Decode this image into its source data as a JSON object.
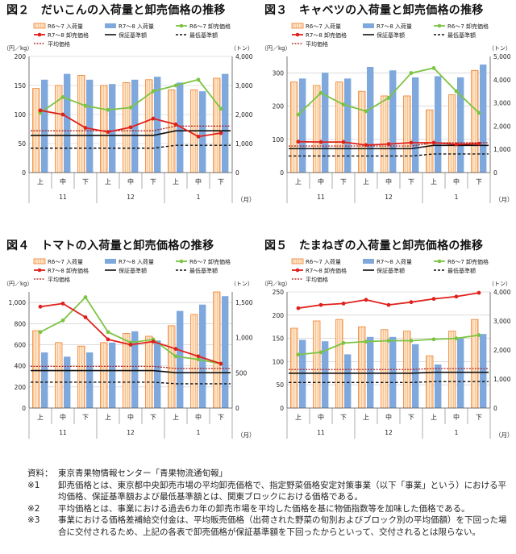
{
  "chart_data": [
    {
      "type": "bar+line",
      "title": "図２　だいこんの入荷量と卸売価格の推移",
      "ylabel_left": "（円／kg）",
      "ylabel_right": "（トン）",
      "xlabel": "（月）",
      "ylim_left": [
        0,
        200
      ],
      "yticks_left": [
        0,
        50,
        100,
        150,
        200
      ],
      "ylim_right": [
        0,
        4000
      ],
      "yticks_right": [
        0,
        1000,
        2000,
        3000,
        4000
      ],
      "categories": [
        "上",
        "中",
        "下",
        "上",
        "中",
        "下",
        "上",
        "中",
        "下"
      ],
      "months": [
        "11",
        "12",
        "1"
      ],
      "legend": {
        "r6_volume": "R6～7 入荷量",
        "r7_volume": "R7～8 入荷量",
        "r6_price": "R6～7 卸売価格",
        "r7_price": "R7～8 卸売価格",
        "guarantee": "保証基準額",
        "minimum": "最低基準額",
        "average": "平均価格"
      },
      "series": {
        "r6_volume": [
          2900,
          3000,
          3350,
          3000,
          3100,
          3200,
          2850,
          2850,
          3250
        ],
        "r7_volume": [
          3200,
          3400,
          3200,
          3050,
          3200,
          3300,
          3100,
          2800,
          3400
        ],
        "r6_price": [
          103,
          130,
          115,
          108,
          112,
          140,
          150,
          160,
          110
        ],
        "r7_price": [
          107,
          100,
          77,
          70,
          78,
          93,
          83,
          62,
          68
        ],
        "guarantee": [
          64,
          64,
          64,
          64,
          64,
          64,
          72,
          72,
          72
        ],
        "minimum": [
          42,
          42,
          42,
          42,
          42,
          42,
          47,
          47,
          47
        ],
        "average": [
          72,
          72,
          72,
          72,
          72,
          72,
          80,
          80,
          80
        ]
      }
    },
    {
      "type": "bar+line",
      "title": "図３　キャベツの入荷量と卸売価格の推移",
      "ylabel_left": "（円／kg）",
      "ylabel_right": "（トン）",
      "xlabel": "（月）",
      "ylim_left": [
        0,
        350
      ],
      "yticks_left": [
        0,
        100,
        200,
        300
      ],
      "ylim_right": [
        0,
        5000
      ],
      "yticks_right": [
        0,
        1000,
        2000,
        3000,
        4000,
        5000
      ],
      "categories": [
        "上",
        "中",
        "下",
        "上",
        "中",
        "下",
        "上",
        "中",
        "下"
      ],
      "months": [
        "11",
        "12",
        "1"
      ],
      "legend": {
        "r6_volume": "R6～7 入荷量",
        "r7_volume": "R7～8 入荷量",
        "r6_price": "R6～7 卸売価格",
        "r7_price": "R7～8 卸売価格",
        "guarantee": "保証基準額",
        "minimum": "最低基準額",
        "average": "平均価格"
      },
      "series": {
        "r6_volume": [
          3900,
          3750,
          3900,
          3500,
          3300,
          3300,
          2700,
          3350,
          4400
        ],
        "r7_volume": [
          4050,
          4300,
          4050,
          4550,
          4400,
          4100,
          4150,
          4100,
          4650
        ],
        "r6_price": [
          175,
          240,
          205,
          185,
          225,
          300,
          315,
          245,
          180
        ],
        "r7_price": [
          93,
          92,
          92,
          83,
          86,
          90,
          90,
          85,
          87
        ],
        "guarantee": [
          72,
          72,
          72,
          72,
          72,
          72,
          82,
          82,
          82
        ],
        "minimum": [
          50,
          50,
          50,
          50,
          50,
          50,
          56,
          56,
          56
        ],
        "average": [
          80,
          80,
          80,
          80,
          80,
          80,
          90,
          90,
          90
        ]
      }
    },
    {
      "type": "bar+line",
      "title": "図４　トマトの入荷量と卸売価格の推移",
      "ylabel_left": "（円／kg）",
      "ylabel_right": "（トン）",
      "xlabel": "（月）",
      "ylim_left": [
        0,
        1100
      ],
      "yticks_left": [
        0,
        200,
        400,
        600,
        800,
        1000
      ],
      "ylim_right": [
        0,
        1650
      ],
      "yticks_right": [
        0,
        500,
        1000,
        1500
      ],
      "categories": [
        "上",
        "中",
        "下",
        "上",
        "中",
        "下",
        "上",
        "中",
        "下"
      ],
      "months": [
        "11",
        "12",
        "1"
      ],
      "legend": {
        "r6_volume": "R6～7 入荷量",
        "r7_volume": "R7～8 入荷量",
        "r6_price": "R6～7 卸売価格",
        "r7_price": "R7～8 卸売価格",
        "guarantee": "保証基準額",
        "minimum": "最低基準額",
        "average": "平均価格"
      },
      "series": {
        "r6_volume": [
          1100,
          930,
          880,
          930,
          1060,
          1020,
          1170,
          1330,
          1650
        ],
        "r7_volume": [
          790,
          730,
          790,
          930,
          1090,
          960,
          1380,
          1470,
          1590
        ],
        "r6_price": [
          720,
          830,
          1050,
          720,
          620,
          650,
          490,
          460,
          420
        ],
        "r7_price": [
          960,
          990,
          860,
          650,
          600,
          630,
          560,
          490,
          420
        ],
        "guarantee": [
          355,
          355,
          355,
          355,
          355,
          355,
          335,
          335,
          335
        ],
        "minimum": [
          245,
          245,
          245,
          245,
          245,
          245,
          230,
          230,
          230
        ],
        "average": [
          395,
          395,
          395,
          395,
          395,
          395,
          375,
          375,
          375
        ]
      }
    },
    {
      "type": "bar+line",
      "title": "図５　たまねぎの入荷量と卸売価格の推移",
      "ylabel_left": "（円／kg）",
      "ylabel_right": "（トン）",
      "xlabel": "（月）",
      "ylim_left": [
        0,
        250
      ],
      "yticks_left": [
        0,
        50,
        100,
        150,
        200,
        250
      ],
      "ylim_right": [
        0,
        4000
      ],
      "yticks_right": [
        0,
        1000,
        2000,
        3000,
        4000
      ],
      "categories": [
        "上",
        "中",
        "下",
        "上",
        "中",
        "下",
        "上",
        "中",
        "下"
      ],
      "months": [
        "11",
        "12",
        "1"
      ],
      "legend": {
        "r6_volume": "R6～7 入荷量",
        "r7_volume": "R7～8 入荷量",
        "r6_price": "R6～7 卸売価格",
        "r7_price": "R7～8 卸売価格",
        "guarantee": "保証基準額",
        "minimum": "最低基準額",
        "average": "平均価格"
      },
      "series": {
        "r6_volume": [
          2750,
          3000,
          3050,
          2800,
          2700,
          2650,
          1800,
          2650,
          3050
        ],
        "r7_volume": [
          2350,
          2300,
          1850,
          2450,
          2450,
          2200,
          1500,
          2400,
          2550
        ],
        "r6_price": [
          115,
          120,
          140,
          143,
          145,
          145,
          148,
          150,
          157
        ],
        "r7_price": [
          215,
          222,
          225,
          233,
          222,
          228,
          235,
          240,
          248
        ],
        "guarantee": [
          75,
          75,
          75,
          75,
          75,
          75,
          77,
          77,
          77
        ],
        "minimum": [
          55,
          55,
          55,
          55,
          55,
          55,
          57,
          57,
          57
        ],
        "average": [
          83,
          83,
          83,
          83,
          83,
          83,
          85,
          85,
          85
        ]
      }
    }
  ],
  "notes": [
    {
      "label": "資料：",
      "text": "東京青果物情報センター「青果物流通旬報」"
    },
    {
      "label": "※1",
      "text": "卸売価格とは、東京都中央卸売市場の平均卸売価格で、指定野菜価格安定対策事業（以下「事業」という）における平均価格、保証基準額および最低基準額とは、関東ブロックにおける価格である。"
    },
    {
      "label": "※2",
      "text": "平均価格とは、事業における過去6カ年の卸売市場を平均した価格を基に物価指数等を加味した価格である。"
    },
    {
      "label": "※3",
      "text": "事業における価格差補給交付金は、平均販売価格（出荷された野菜の旬別およびブロック別の平均価額）を下回った場合に交付されるため、上記の各表で卸売価格が保証基準額を下回ったからといって、交付されるとは限らない。"
    }
  ]
}
